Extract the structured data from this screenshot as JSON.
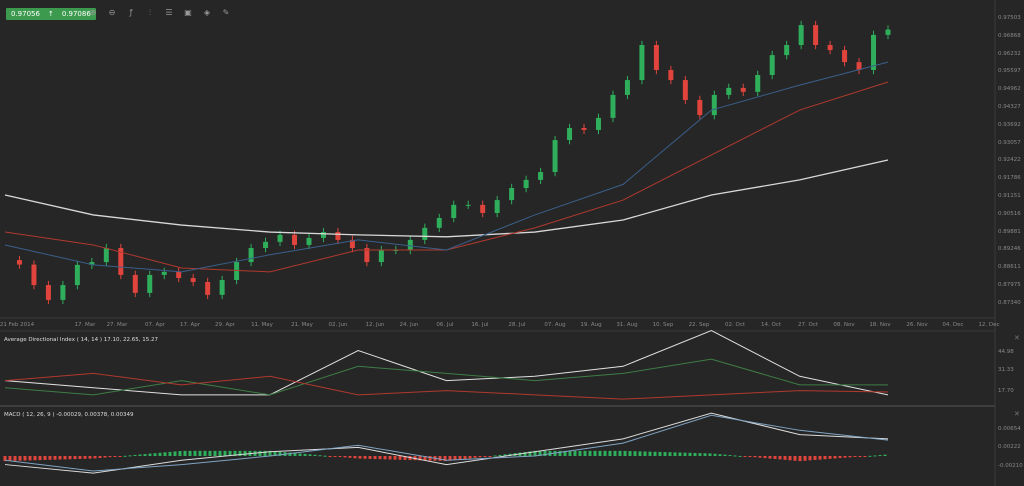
{
  "header": {
    "bid": "0.97056",
    "ask": "0.97086",
    "direction_icon": "arrow-up-icon"
  },
  "toolbar": [
    {
      "name": "zoom-in-icon",
      "glyph": "⊕"
    },
    {
      "name": "zoom-out-icon",
      "glyph": "⊖"
    },
    {
      "name": "indicators-icon",
      "glyph": "ƒ"
    },
    {
      "name": "chart-type-icon",
      "glyph": "⫶"
    },
    {
      "name": "template-icon",
      "glyph": "☰"
    },
    {
      "name": "screenshot-icon",
      "glyph": "▣"
    },
    {
      "name": "tag-icon",
      "glyph": "◈"
    },
    {
      "name": "draw-icon",
      "glyph": "✎"
    }
  ],
  "colors": {
    "background": "#262626",
    "up": "#2fae5b",
    "down": "#e0443c",
    "ma_long": "#d8d8d8",
    "ma_mid": "#b0392e",
    "ma_short": "#3a5f8a",
    "adx": "#e0e0e0",
    "plus_di": "#3e7d45",
    "minus_di": "#b0392e",
    "macd": "#dcdcdc",
    "signal": "#7fa4c4"
  },
  "adx_label": "Average Directional Index ( 14, 14 ) 17.10, 22.65, 15.27",
  "macd_label": "MACD ( 12, 26, 9 ) -0.00029, 0.00378, 0.00349",
  "chart_data": [
    {
      "type": "candlestick",
      "ylim": [
        0.8716,
        0.9786
      ],
      "y_ticks": [
        "0.97503",
        "0.96868",
        "0.96232",
        "0.95597",
        "0.94962",
        "0.94327",
        "0.93692",
        "0.93057",
        "0.92422",
        "0.91786",
        "0.91151",
        "0.90516",
        "0.89881",
        "0.89246",
        "0.88611",
        "0.87975",
        "0.87340"
      ],
      "x_ticks": [
        "21 Feb 2014",
        "17. Mar",
        "27. Mar",
        "07. Apr",
        "17. Apr",
        "29. Apr",
        "11. May",
        "21. May",
        "02. Jun",
        "12. Jun",
        "24. Jun",
        "06. Jul",
        "16. Jul",
        "28. Jul",
        "07. Aug",
        "19. Aug",
        "31. Aug",
        "10. Sep",
        "22. Sep",
        "02. Oct",
        "14. Oct",
        "27. Oct",
        "08. Nov",
        "18. Nov",
        "26. Nov",
        "04. Dec",
        "12. Dec"
      ],
      "closes": [
        0.8887,
        0.8871,
        0.8798,
        0.8745,
        0.8798,
        0.887,
        0.888,
        0.893,
        0.8834,
        0.877,
        0.8834,
        0.8845,
        0.8823,
        0.8809,
        0.8763,
        0.8816,
        0.888,
        0.893,
        0.8952,
        0.8977,
        0.8941,
        0.8966,
        0.8987,
        0.8959,
        0.893,
        0.888,
        0.8923,
        0.8923,
        0.8959,
        0.9002,
        0.9037,
        0.9084,
        0.9084,
        0.9055,
        0.9101,
        0.9144,
        0.9173,
        0.9201,
        0.9315,
        0.9358,
        0.9351,
        0.9394,
        0.9476,
        0.9529,
        0.9654,
        0.9565,
        0.9529,
        0.9458,
        0.9404,
        0.9476,
        0.9501,
        0.9487,
        0.9547,
        0.9618,
        0.9654,
        0.9725,
        0.9654,
        0.9636,
        0.9593,
        0.9565,
        0.969,
        0.9709
      ],
      "moving_averages": [
        {
          "key": "ma_long",
          "values": [
            0.9119,
            0.9048,
            0.9012,
            0.8987,
            0.8977,
            0.897,
            0.8987,
            0.903,
            0.9119,
            0.9173,
            0.9244
          ]
        },
        {
          "key": "ma_mid",
          "values": [
            0.8987,
            0.8941,
            0.8859,
            0.8845,
            0.8923,
            0.8923,
            0.9002,
            0.9101,
            0.9262,
            0.9422,
            0.9522
          ]
        },
        {
          "key": "ma_short",
          "values": [
            0.8941,
            0.887,
            0.8845,
            0.8906,
            0.8959,
            0.8923,
            0.9048,
            0.9157,
            0.9422,
            0.9511,
            0.9593
          ]
        }
      ]
    },
    {
      "type": "line",
      "name": "ADX",
      "y_ticks": [
        "44.98",
        "31.33",
        "17.70"
      ],
      "series": [
        {
          "key": "adx",
          "values": [
            25,
            20,
            15,
            15,
            46,
            25,
            28,
            35,
            60,
            28,
            15
          ]
        },
        {
          "key": "plus_di",
          "values": [
            20,
            15,
            25,
            15,
            35,
            30,
            25,
            30,
            40,
            22,
            22
          ]
        },
        {
          "key": "minus_di",
          "values": [
            25,
            30,
            22,
            28,
            15,
            18,
            15,
            12,
            15,
            18,
            17
          ]
        }
      ]
    },
    {
      "type": "line",
      "name": "MACD",
      "y_ticks": [
        "0.00654",
        "0.00222",
        "-0.00210"
      ],
      "series": [
        {
          "key": "macd",
          "values": [
            -0.002,
            -0.004,
            -0.001,
            0.001,
            0.002,
            -0.002,
            0.001,
            0.004,
            0.01,
            0.005,
            0.004
          ]
        },
        {
          "key": "signal",
          "values": [
            -0.001,
            -0.0035,
            -0.002,
            0.0,
            0.0025,
            -0.001,
            0.0,
            0.003,
            0.0095,
            0.006,
            0.0037
          ]
        }
      ]
    }
  ]
}
